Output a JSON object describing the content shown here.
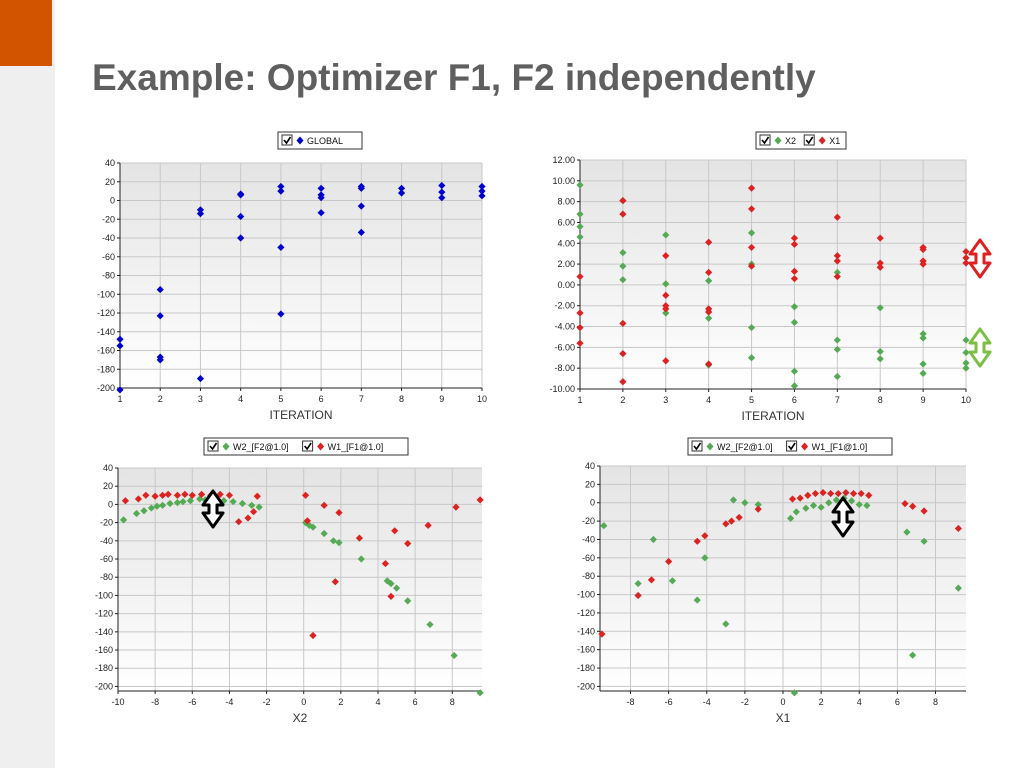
{
  "slide": {
    "title": "Example: Optimizer F1, F2 independently",
    "accent_color": "#d35400",
    "title_color": "#5f5f5f"
  },
  "annotations": {
    "black_arrow": "double-headed-vertical-arrow",
    "red_arrow": "double-headed-vertical-arrow",
    "green_arrow": "double-headed-vertical-arrow",
    "red_arrow_color": "#e02020",
    "green_arrow_color": "#7bc043"
  },
  "chart_data": [
    {
      "id": "c1",
      "type": "scatter",
      "xlabel": "ITERATION",
      "ylabel": "",
      "xlim": [
        1,
        10
      ],
      "ylim": [
        -200,
        40
      ],
      "xticks": [
        1,
        2,
        3,
        4,
        5,
        6,
        7,
        8,
        9,
        10
      ],
      "yticks": [
        40,
        20,
        0,
        -20,
        -40,
        -60,
        -80,
        -100,
        -120,
        -140,
        -160,
        -180,
        -200
      ],
      "tick_decimals": 0,
      "legend_placement": "top-center",
      "grid": true,
      "series": [
        {
          "name": "GLOBAL",
          "color": "#0000cc",
          "points": [
            [
              1,
              -148
            ],
            [
              1,
              -155
            ],
            [
              1,
              -202
            ],
            [
              2,
              -95
            ],
            [
              2,
              -123
            ],
            [
              2,
              -167
            ],
            [
              2,
              -170
            ],
            [
              3,
              -10
            ],
            [
              3,
              -14
            ],
            [
              3,
              -190
            ],
            [
              4,
              7
            ],
            [
              4,
              6
            ],
            [
              4,
              -17
            ],
            [
              4,
              -40
            ],
            [
              5,
              15
            ],
            [
              5,
              10
            ],
            [
              5,
              -50
            ],
            [
              5,
              -121
            ],
            [
              6,
              13
            ],
            [
              6,
              6
            ],
            [
              6,
              3
            ],
            [
              6,
              -13
            ],
            [
              7,
              15
            ],
            [
              7,
              13
            ],
            [
              7,
              -6
            ],
            [
              7,
              -34
            ],
            [
              8,
              13
            ],
            [
              8,
              8
            ],
            [
              9,
              16
            ],
            [
              9,
              9
            ],
            [
              9,
              3
            ],
            [
              10,
              15
            ],
            [
              10,
              10
            ],
            [
              10,
              5
            ]
          ]
        }
      ]
    },
    {
      "id": "c2",
      "type": "scatter",
      "xlabel": "ITERATION",
      "ylabel": "",
      "xlim": [
        1,
        10
      ],
      "ylim": [
        -10,
        12
      ],
      "xticks": [
        1,
        2,
        3,
        4,
        5,
        6,
        7,
        8,
        9,
        10
      ],
      "yticks": [
        12,
        10,
        8,
        6,
        4,
        2,
        0,
        -2,
        -4,
        -6,
        -8,
        -10
      ],
      "tick_decimals": 2,
      "legend_placement": "top-center",
      "grid": true,
      "series": [
        {
          "name": "X2",
          "color": "#55aa55",
          "points": [
            [
              1,
              9.6
            ],
            [
              1,
              6.8
            ],
            [
              1,
              5.6
            ],
            [
              1,
              4.6
            ],
            [
              2,
              8.1
            ],
            [
              2,
              3.1
            ],
            [
              2,
              1.8
            ],
            [
              2,
              0.5
            ],
            [
              3,
              4.8
            ],
            [
              3,
              0.1
            ],
            [
              3,
              -2.7
            ],
            [
              4,
              0.4
            ],
            [
              4,
              -3.2
            ],
            [
              4,
              -7.7
            ],
            [
              5,
              5.0
            ],
            [
              5,
              2.0
            ],
            [
              5,
              -4.1
            ],
            [
              5,
              -7.0
            ],
            [
              6,
              -2.1
            ],
            [
              6,
              -3.6
            ],
            [
              6,
              -8.3
            ],
            [
              6,
              -9.7
            ],
            [
              7,
              1.2
            ],
            [
              7,
              -5.3
            ],
            [
              7,
              -6.2
            ],
            [
              7,
              -8.8
            ],
            [
              8,
              -2.2
            ],
            [
              8,
              -6.4
            ],
            [
              8,
              -7.1
            ],
            [
              9,
              -4.7
            ],
            [
              9,
              -5.1
            ],
            [
              9,
              -7.6
            ],
            [
              9,
              -8.5
            ],
            [
              10,
              -5.3
            ],
            [
              10,
              -6.5
            ],
            [
              10,
              -7.5
            ],
            [
              10,
              -8.0
            ]
          ]
        },
        {
          "name": "X1",
          "color": "#dd2222",
          "points": [
            [
              1,
              0.8
            ],
            [
              1,
              -2.7
            ],
            [
              1,
              -4.1
            ],
            [
              1,
              -5.6
            ],
            [
              2,
              8.1
            ],
            [
              2,
              6.8
            ],
            [
              2,
              -3.7
            ],
            [
              2,
              -6.6
            ],
            [
              2,
              -9.3
            ],
            [
              3,
              2.8
            ],
            [
              3,
              -1.0
            ],
            [
              3,
              -2.0
            ],
            [
              3,
              -2.3
            ],
            [
              3,
              -7.3
            ],
            [
              4,
              4.1
            ],
            [
              4,
              1.2
            ],
            [
              4,
              -2.3
            ],
            [
              4,
              -2.6
            ],
            [
              4,
              -7.6
            ],
            [
              5,
              9.3
            ],
            [
              5,
              7.3
            ],
            [
              5,
              3.6
            ],
            [
              5,
              1.8
            ],
            [
              6,
              4.5
            ],
            [
              6,
              3.9
            ],
            [
              6,
              1.3
            ],
            [
              6,
              0.6
            ],
            [
              7,
              6.5
            ],
            [
              7,
              2.8
            ],
            [
              7,
              2.3
            ],
            [
              7,
              0.8
            ],
            [
              8,
              4.5
            ],
            [
              8,
              2.1
            ],
            [
              8,
              1.7
            ],
            [
              9,
              3.6
            ],
            [
              9,
              3.4
            ],
            [
              9,
              2.3
            ],
            [
              9,
              2.0
            ],
            [
              10,
              3.2
            ],
            [
              10,
              2.6
            ],
            [
              10,
              2.1
            ]
          ]
        }
      ]
    },
    {
      "id": "c3",
      "type": "scatter",
      "xlabel": "X2",
      "ylabel": "",
      "xlim": [
        -10,
        9.6
      ],
      "ylim": [
        -205,
        40
      ],
      "xticks": [
        -10,
        -8,
        -6,
        -4,
        -2,
        0,
        2,
        4,
        6,
        8
      ],
      "yticks": [
        40,
        20,
        0,
        -20,
        -40,
        -60,
        -80,
        -100,
        -120,
        -140,
        -160,
        -180,
        -200
      ],
      "tick_decimals": 0,
      "legend_placement": "top-center",
      "grid": true,
      "series": [
        {
          "name": "W2_[F2@1.0]",
          "color": "#55aa55",
          "points": [
            [
              -9.7,
              -17
            ],
            [
              -9,
              -10
            ],
            [
              -8.6,
              -7
            ],
            [
              -8.2,
              -4
            ],
            [
              -7.9,
              -2
            ],
            [
              -7.6,
              -1
            ],
            [
              -7.2,
              1
            ],
            [
              -6.8,
              2
            ],
            [
              -6.5,
              3
            ],
            [
              -6.1,
              4
            ],
            [
              -5.6,
              6
            ],
            [
              -5.3,
              5
            ],
            [
              -5.0,
              6
            ],
            [
              -4.7,
              5
            ],
            [
              -4.3,
              4
            ],
            [
              -3.8,
              3
            ],
            [
              -3.3,
              1
            ],
            [
              -2.8,
              -1
            ],
            [
              -2.4,
              -3
            ],
            [
              0.1,
              -20
            ],
            [
              0.3,
              -23
            ],
            [
              0.5,
              -25
            ],
            [
              1.1,
              -32
            ],
            [
              1.6,
              -40
            ],
            [
              1.9,
              -42
            ],
            [
              3.1,
              -60
            ],
            [
              4.5,
              -84
            ],
            [
              4.7,
              -87
            ],
            [
              5.0,
              -92
            ],
            [
              5.6,
              -106
            ],
            [
              6.8,
              -132
            ],
            [
              8.1,
              -166
            ],
            [
              9.5,
              -207
            ]
          ]
        },
        {
          "name": "W1_[F1@1.0]",
          "color": "#dd2222",
          "points": [
            [
              -9.6,
              4
            ],
            [
              -8.9,
              6
            ],
            [
              -8.5,
              10
            ],
            [
              -8.0,
              9
            ],
            [
              -7.6,
              10
            ],
            [
              -7.3,
              11
            ],
            [
              -6.8,
              10
            ],
            [
              -6.4,
              11
            ],
            [
              -6.0,
              10
            ],
            [
              -5.5,
              11
            ],
            [
              -5.0,
              10
            ],
            [
              -4.5,
              11
            ],
            [
              -4.0,
              10
            ],
            [
              -3.5,
              -19
            ],
            [
              -3.0,
              -15
            ],
            [
              -2.7,
              -8
            ],
            [
              -2.5,
              9
            ],
            [
              0.1,
              10
            ],
            [
              0.2,
              -18
            ],
            [
              0.5,
              -144
            ],
            [
              1.1,
              -1
            ],
            [
              1.7,
              -85
            ],
            [
              1.9,
              -9
            ],
            [
              3.0,
              -37
            ],
            [
              4.4,
              -65
            ],
            [
              4.7,
              -101
            ],
            [
              4.9,
              -29
            ],
            [
              5.6,
              -43
            ],
            [
              6.7,
              -23
            ],
            [
              8.2,
              -3
            ],
            [
              9.5,
              5
            ]
          ]
        }
      ]
    },
    {
      "id": "c4",
      "type": "scatter",
      "xlabel": "X1",
      "ylabel": "",
      "xlim": [
        -9.6,
        9.6
      ],
      "ylim": [
        -205,
        40
      ],
      "xticks": [
        -8,
        -6,
        -4,
        -2,
        0,
        2,
        4,
        6,
        8
      ],
      "yticks": [
        40,
        20,
        0,
        -20,
        -40,
        -60,
        -80,
        -100,
        -120,
        -140,
        -160,
        -180,
        -200
      ],
      "tick_decimals": 0,
      "legend_placement": "top-center",
      "grid": true,
      "series": [
        {
          "name": "W2_[F2@1.0]",
          "color": "#55aa55",
          "points": [
            [
              -9.4,
              -25
            ],
            [
              -7.6,
              -88
            ],
            [
              -6.8,
              -40
            ],
            [
              -5.8,
              -85
            ],
            [
              -4.5,
              -106
            ],
            [
              -4.1,
              -60
            ],
            [
              -3.0,
              -132
            ],
            [
              -2.6,
              3
            ],
            [
              -2.0,
              0
            ],
            [
              -1.3,
              -2
            ],
            [
              0.4,
              -17
            ],
            [
              0.7,
              -10
            ],
            [
              0.6,
              -207
            ],
            [
              1.2,
              -6
            ],
            [
              1.6,
              -3
            ],
            [
              2.0,
              -5
            ],
            [
              2.4,
              0
            ],
            [
              2.8,
              3
            ],
            [
              3.2,
              5
            ],
            [
              3.6,
              2
            ],
            [
              4.0,
              -2
            ],
            [
              4.4,
              -3
            ],
            [
              6.5,
              -32
            ],
            [
              6.8,
              -166
            ],
            [
              7.4,
              -42
            ],
            [
              9.2,
              -93
            ]
          ]
        },
        {
          "name": "W1_[F1@1.0]",
          "color": "#dd2222",
          "points": [
            [
              -9.5,
              -143
            ],
            [
              -7.6,
              -101
            ],
            [
              -6.9,
              -84
            ],
            [
              -6.0,
              -64
            ],
            [
              -4.5,
              -42
            ],
            [
              -4.1,
              -36
            ],
            [
              -3.0,
              -23
            ],
            [
              -2.7,
              -20
            ],
            [
              -2.3,
              -16
            ],
            [
              -1.3,
              -7
            ],
            [
              0.5,
              4
            ],
            [
              0.9,
              5
            ],
            [
              1.3,
              8
            ],
            [
              1.7,
              10
            ],
            [
              2.1,
              11
            ],
            [
              2.5,
              10
            ],
            [
              2.9,
              10
            ],
            [
              3.3,
              11
            ],
            [
              3.7,
              10
            ],
            [
              4.1,
              10
            ],
            [
              4.5,
              8
            ],
            [
              6.4,
              -1
            ],
            [
              6.8,
              -4
            ],
            [
              7.4,
              -9
            ],
            [
              9.2,
              -28
            ]
          ]
        }
      ]
    }
  ]
}
